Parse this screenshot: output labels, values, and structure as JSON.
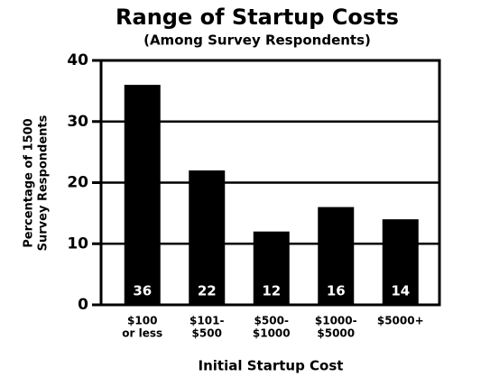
{
  "chart_data": {
    "type": "bar",
    "title": "Range of Startup Costs",
    "subtitle": "(Among Survey Respondents)",
    "xlabel": "Initial Startup Cost",
    "ylabel": [
      "Percentage of 1500",
      "Survey Respondents"
    ],
    "categories": [
      [
        "$100",
        "or less"
      ],
      [
        "$101-",
        "$500"
      ],
      [
        "$500-",
        "$1000"
      ],
      [
        "$1000-",
        "$5000"
      ],
      [
        "$5000+"
      ]
    ],
    "values": [
      36,
      22,
      12,
      16,
      14
    ],
    "color": "#000000",
    "ylim": [
      0,
      40
    ],
    "yticks": [
      0,
      10,
      20,
      30,
      40
    ],
    "grid": true
  }
}
